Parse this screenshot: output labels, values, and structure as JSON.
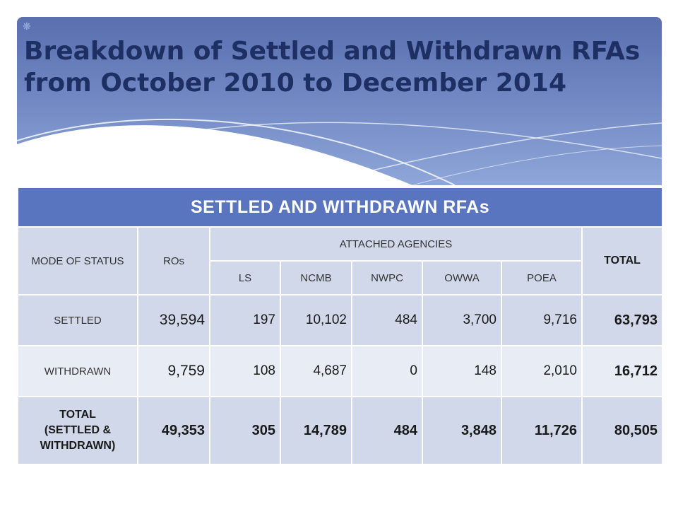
{
  "title": "Breakdown of Settled and Withdrawn RFAs from October 2010 to December 2014",
  "table": {
    "caption": "SETTLED AND WITHDRAWN RFAs",
    "header": {
      "mode_of_status": "MODE OF STATUS",
      "ros": "ROs",
      "attached_agencies": "ATTACHED AGENCIES",
      "total": "TOTAL",
      "agencies": [
        "LS",
        "NCMB",
        "NWPC",
        "OWWA",
        "POEA"
      ]
    },
    "rows": [
      {
        "status": "SETTLED",
        "ros": "39,594",
        "ls": "197",
        "ncmb": "10,102",
        "nwpc": "484",
        "owwa": "3,700",
        "poea": "9,716",
        "total": "63,793"
      },
      {
        "status": "WITHDRAWN",
        "ros": "9,759",
        "ls": "108",
        "ncmb": "4,687",
        "nwpc": "0",
        "owwa": "148",
        "poea": "2,010",
        "total": "16,712"
      },
      {
        "status_line1": "TOTAL",
        "status_line2": "(SETTLED &",
        "status_line3": "WITHDRAWN)",
        "ros": "49,353",
        "ls": "305",
        "ncmb": "14,789",
        "nwpc": "484",
        "owwa": "3,848",
        "poea": "11,726",
        "total": "80,505"
      }
    ]
  }
}
